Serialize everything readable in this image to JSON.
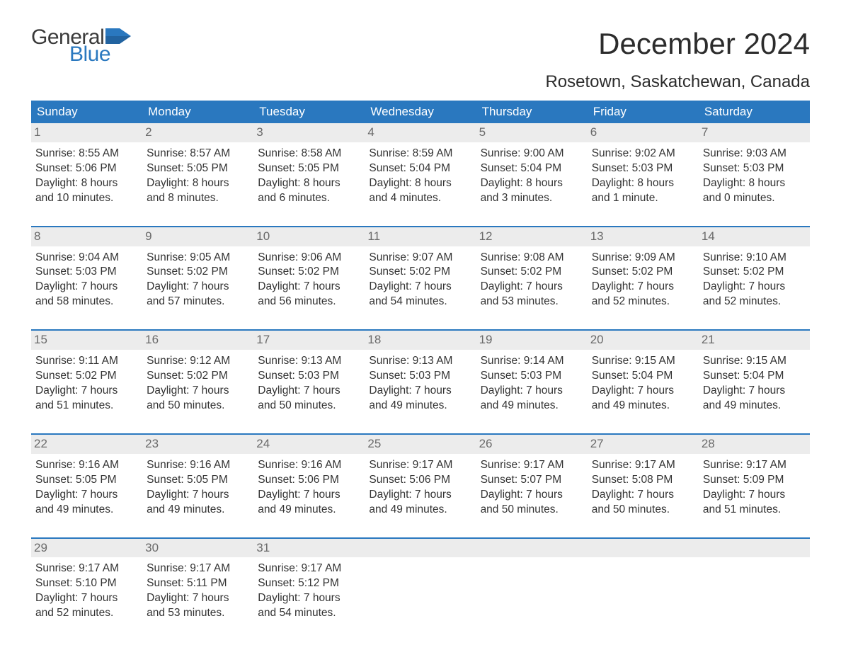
{
  "brand": {
    "general": "General",
    "blue": "Blue"
  },
  "title": "December 2024",
  "location": "Rosetown, Saskatchewan, Canada",
  "colors": {
    "header_bg": "#2a78bf",
    "header_text": "#ffffff",
    "row_rule": "#2a78bf",
    "daynum_bg": "#ececec",
    "daynum_text": "#6a6a6a",
    "body_text": "#333333",
    "background": "#ffffff",
    "logo_general": "#3a3a3a",
    "logo_blue": "#2a78bf"
  },
  "typography": {
    "title_fontsize": 42,
    "location_fontsize": 24,
    "dayhead_fontsize": 17,
    "cell_fontsize": 15.5,
    "logo_fontsize": 30
  },
  "layout": {
    "columns": 7,
    "rows": 5,
    "column_labels": [
      "Sunday",
      "Monday",
      "Tuesday",
      "Wednesday",
      "Thursday",
      "Friday",
      "Saturday"
    ]
  },
  "field_order": [
    "sunrise",
    "sunset",
    "daylight"
  ],
  "label_prefixes": {
    "sunrise": "Sunrise: ",
    "sunset": "Sunset: ",
    "daylight": "Daylight: "
  },
  "days": [
    {
      "n": 1,
      "sunrise": "8:55 AM",
      "sunset": "5:06 PM",
      "daylight": "8 hours and 10 minutes."
    },
    {
      "n": 2,
      "sunrise": "8:57 AM",
      "sunset": "5:05 PM",
      "daylight": "8 hours and 8 minutes."
    },
    {
      "n": 3,
      "sunrise": "8:58 AM",
      "sunset": "5:05 PM",
      "daylight": "8 hours and 6 minutes."
    },
    {
      "n": 4,
      "sunrise": "8:59 AM",
      "sunset": "5:04 PM",
      "daylight": "8 hours and 4 minutes."
    },
    {
      "n": 5,
      "sunrise": "9:00 AM",
      "sunset": "5:04 PM",
      "daylight": "8 hours and 3 minutes."
    },
    {
      "n": 6,
      "sunrise": "9:02 AM",
      "sunset": "5:03 PM",
      "daylight": "8 hours and 1 minute."
    },
    {
      "n": 7,
      "sunrise": "9:03 AM",
      "sunset": "5:03 PM",
      "daylight": "8 hours and 0 minutes."
    },
    {
      "n": 8,
      "sunrise": "9:04 AM",
      "sunset": "5:03 PM",
      "daylight": "7 hours and 58 minutes."
    },
    {
      "n": 9,
      "sunrise": "9:05 AM",
      "sunset": "5:02 PM",
      "daylight": "7 hours and 57 minutes."
    },
    {
      "n": 10,
      "sunrise": "9:06 AM",
      "sunset": "5:02 PM",
      "daylight": "7 hours and 56 minutes."
    },
    {
      "n": 11,
      "sunrise": "9:07 AM",
      "sunset": "5:02 PM",
      "daylight": "7 hours and 54 minutes."
    },
    {
      "n": 12,
      "sunrise": "9:08 AM",
      "sunset": "5:02 PM",
      "daylight": "7 hours and 53 minutes."
    },
    {
      "n": 13,
      "sunrise": "9:09 AM",
      "sunset": "5:02 PM",
      "daylight": "7 hours and 52 minutes."
    },
    {
      "n": 14,
      "sunrise": "9:10 AM",
      "sunset": "5:02 PM",
      "daylight": "7 hours and 52 minutes."
    },
    {
      "n": 15,
      "sunrise": "9:11 AM",
      "sunset": "5:02 PM",
      "daylight": "7 hours and 51 minutes."
    },
    {
      "n": 16,
      "sunrise": "9:12 AM",
      "sunset": "5:02 PM",
      "daylight": "7 hours and 50 minutes."
    },
    {
      "n": 17,
      "sunrise": "9:13 AM",
      "sunset": "5:03 PM",
      "daylight": "7 hours and 50 minutes."
    },
    {
      "n": 18,
      "sunrise": "9:13 AM",
      "sunset": "5:03 PM",
      "daylight": "7 hours and 49 minutes."
    },
    {
      "n": 19,
      "sunrise": "9:14 AM",
      "sunset": "5:03 PM",
      "daylight": "7 hours and 49 minutes."
    },
    {
      "n": 20,
      "sunrise": "9:15 AM",
      "sunset": "5:04 PM",
      "daylight": "7 hours and 49 minutes."
    },
    {
      "n": 21,
      "sunrise": "9:15 AM",
      "sunset": "5:04 PM",
      "daylight": "7 hours and 49 minutes."
    },
    {
      "n": 22,
      "sunrise": "9:16 AM",
      "sunset": "5:05 PM",
      "daylight": "7 hours and 49 minutes."
    },
    {
      "n": 23,
      "sunrise": "9:16 AM",
      "sunset": "5:05 PM",
      "daylight": "7 hours and 49 minutes."
    },
    {
      "n": 24,
      "sunrise": "9:16 AM",
      "sunset": "5:06 PM",
      "daylight": "7 hours and 49 minutes."
    },
    {
      "n": 25,
      "sunrise": "9:17 AM",
      "sunset": "5:06 PM",
      "daylight": "7 hours and 49 minutes."
    },
    {
      "n": 26,
      "sunrise": "9:17 AM",
      "sunset": "5:07 PM",
      "daylight": "7 hours and 50 minutes."
    },
    {
      "n": 27,
      "sunrise": "9:17 AM",
      "sunset": "5:08 PM",
      "daylight": "7 hours and 50 minutes."
    },
    {
      "n": 28,
      "sunrise": "9:17 AM",
      "sunset": "5:09 PM",
      "daylight": "7 hours and 51 minutes."
    },
    {
      "n": 29,
      "sunrise": "9:17 AM",
      "sunset": "5:10 PM",
      "daylight": "7 hours and 52 minutes."
    },
    {
      "n": 30,
      "sunrise": "9:17 AM",
      "sunset": "5:11 PM",
      "daylight": "7 hours and 53 minutes."
    },
    {
      "n": 31,
      "sunrise": "9:17 AM",
      "sunset": "5:12 PM",
      "daylight": "7 hours and 54 minutes."
    }
  ]
}
